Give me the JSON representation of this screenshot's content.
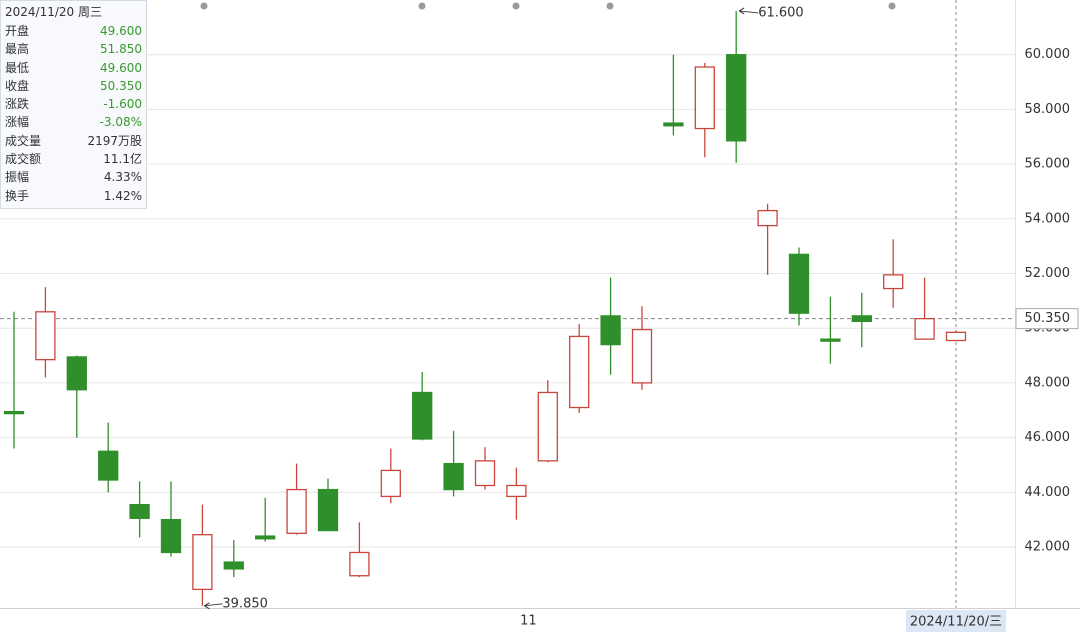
{
  "chart_data": {
    "type": "candlestick",
    "categories": [
      null,
      null,
      null,
      null,
      null,
      null,
      null,
      null,
      null,
      null,
      null,
      null,
      null,
      null,
      null,
      null,
      "11",
      null,
      null,
      null,
      null,
      null,
      null,
      null,
      null,
      null,
      null,
      null,
      null,
      null,
      null
    ],
    "open": [
      46.95,
      48.85,
      48.95,
      45.5,
      43.55,
      43.0,
      40.45,
      41.45,
      42.4,
      42.5,
      44.1,
      40.95,
      43.85,
      47.65,
      45.05,
      44.25,
      43.85,
      45.15,
      47.1,
      50.45,
      48.0,
      57.5,
      57.3,
      60.0,
      53.75,
      52.7,
      49.6,
      50.45,
      51.45,
      49.6,
      49.55
    ],
    "high": [
      50.6,
      51.5,
      49.0,
      46.55,
      44.4,
      44.4,
      43.55,
      42.25,
      43.8,
      45.05,
      44.5,
      42.9,
      45.6,
      48.4,
      46.25,
      45.65,
      44.9,
      48.1,
      50.15,
      51.85,
      50.8,
      60.0,
      59.7,
      61.6,
      54.55,
      52.95,
      51.15,
      51.3,
      53.25,
      51.85,
      49.9
    ],
    "low": [
      45.6,
      48.2,
      46.0,
      44.0,
      42.35,
      41.65,
      39.85,
      40.9,
      42.2,
      42.45,
      42.6,
      40.9,
      43.6,
      45.9,
      43.85,
      44.1,
      43.0,
      45.1,
      46.9,
      48.3,
      47.75,
      57.05,
      56.25,
      56.05,
      51.95,
      50.1,
      48.7,
      49.3,
      50.75,
      49.6,
      49.55
    ],
    "close": [
      46.9,
      50.6,
      47.75,
      44.45,
      43.05,
      41.8,
      42.45,
      41.2,
      42.3,
      44.1,
      42.6,
      41.8,
      44.8,
      45.95,
      44.1,
      45.15,
      44.25,
      47.65,
      49.7,
      49.4,
      49.95,
      57.4,
      59.55,
      56.85,
      54.3,
      50.55,
      49.55,
      50.25,
      51.95,
      50.35,
      49.85
    ],
    "up_color": "#c9463d",
    "down_color": "#2f8f2a",
    "ylim": [
      39.77,
      62.0
    ],
    "yticks": [
      {
        "value": 42,
        "label": "42.000"
      },
      {
        "value": 44,
        "label": "44.000"
      },
      {
        "value": 46,
        "label": "46.000"
      },
      {
        "value": 48,
        "label": "48.000"
      },
      {
        "value": 50,
        "label": "50.000"
      },
      {
        "value": 52,
        "label": "52.000"
      },
      {
        "value": 54,
        "label": "54.000"
      },
      {
        "value": 56,
        "label": "56.000"
      },
      {
        "value": 58,
        "label": "58.000"
      },
      {
        "value": 60,
        "label": "60.000"
      }
    ],
    "grid": true,
    "max_label": "61.600",
    "min_label": "39.850",
    "crosshair": {
      "x_label": "2024/11/20/三",
      "y": 50.35,
      "y_label": "50.350"
    }
  },
  "info_panel": {
    "title": "2024/11/20 周三",
    "rows": [
      {
        "label": "开盘",
        "value": "49.600",
        "color": "#3a9a2e"
      },
      {
        "label": "最高",
        "value": "51.850",
        "color": "#3a9a2e"
      },
      {
        "label": "最低",
        "value": "49.600",
        "color": "#3a9a2e"
      },
      {
        "label": "收盘",
        "value": "50.350",
        "color": "#3a9a2e"
      },
      {
        "label": "涨跌",
        "value": "-1.600",
        "color": "#3a9a2e"
      },
      {
        "label": "涨幅",
        "value": "-3.08%",
        "color": "#3a9a2e"
      },
      {
        "label": "成交量",
        "value": "2197万股",
        "color": "#333333"
      },
      {
        "label": "成交额",
        "value": "11.1亿",
        "color": "#333333"
      },
      {
        "label": "振幅",
        "value": "4.33%",
        "color": "#333333"
      },
      {
        "label": "换手",
        "value": "1.42%",
        "color": "#333333"
      }
    ]
  }
}
